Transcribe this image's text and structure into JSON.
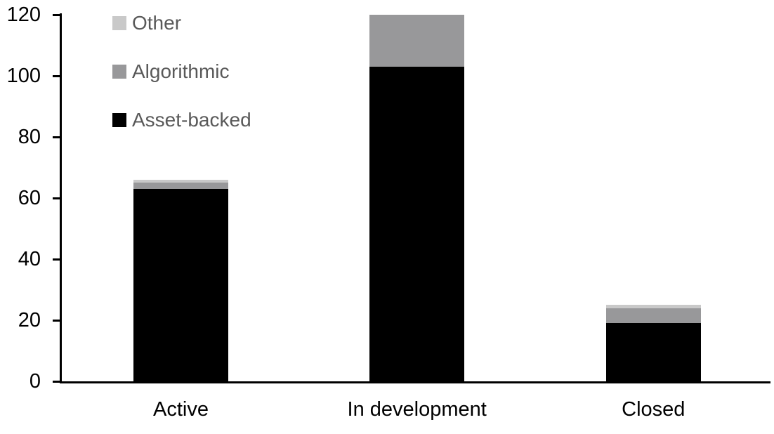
{
  "chart_data": {
    "type": "bar",
    "stacked": true,
    "title": "",
    "categories": [
      "Active",
      "In development",
      "Closed"
    ],
    "series": [
      {
        "name": "Asset-backed",
        "color": "#000000",
        "values": [
          63,
          103,
          19
        ]
      },
      {
        "name": "Algorithmic",
        "color": "#98989A",
        "values": [
          2,
          17,
          5
        ]
      },
      {
        "name": "Other",
        "color": "#C9C9C9",
        "values": [
          1,
          0,
          1
        ]
      }
    ],
    "totals": [
      66,
      120,
      25
    ],
    "ylabel": "",
    "xlabel": "",
    "ylim": [
      0,
      120
    ],
    "yticks": [
      0,
      20,
      40,
      60,
      80,
      100,
      120
    ],
    "grid": false,
    "legend_position": "top-left",
    "legend_order": [
      "Other",
      "Algorithmic",
      "Asset-backed"
    ],
    "colors": {
      "axis": "#000000",
      "tick_label": "#000000",
      "legend_text": "#595959",
      "background": "#ffffff"
    }
  }
}
